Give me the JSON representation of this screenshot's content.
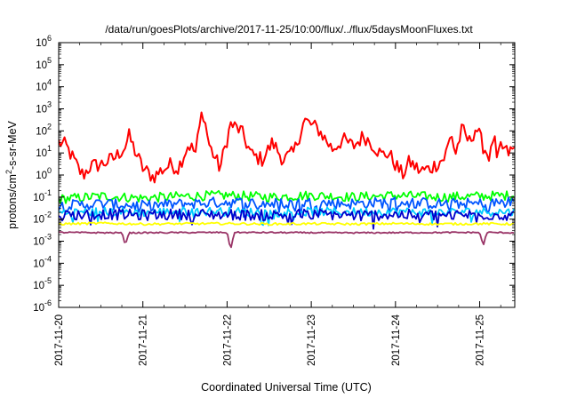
{
  "chart_data": {
    "type": "line",
    "title": "/data/run/goesPlots/archive/2017-11-25/10:00/flux/../flux/5daysMoonFluxes.txt",
    "xlabel": "Coordinated Universal Time (UTC)",
    "ylabel": {
      "prefix": "protons/cm",
      "sup": "2",
      "suffix": "-s-sr-MeV"
    },
    "x_range": [
      "2017-11-20 00:00",
      "2017-11-25 10:00"
    ],
    "y_scale": "log",
    "ylim": [
      1e-06,
      1000000.0
    ],
    "grid": false,
    "legend": "none",
    "x_ticks": [
      "2017-11-20",
      "2017-11-21",
      "2017-11-22",
      "2017-11-23",
      "2017-11-24",
      "2017-11-25"
    ],
    "y_ticks": [
      {
        "base": "10",
        "exp": "-6"
      },
      {
        "base": "10",
        "exp": "-5"
      },
      {
        "base": "10",
        "exp": "-4"
      },
      {
        "base": "10",
        "exp": "-3"
      },
      {
        "base": "10",
        "exp": "-2"
      },
      {
        "base": "10",
        "exp": "-1"
      },
      {
        "base": "10",
        "exp": "0"
      },
      {
        "base": "10",
        "exp": "1"
      },
      {
        "base": "10",
        "exp": "2"
      },
      {
        "base": "10",
        "exp": "3"
      },
      {
        "base": "10",
        "exp": "4"
      },
      {
        "base": "10",
        "exp": "5"
      },
      {
        "base": "10",
        "exp": "6"
      }
    ],
    "series": [
      {
        "color": "#ff0000",
        "values": [
          [
            "2017-11-20 00:00",
            30
          ],
          [
            "2017-11-20 02:00",
            22
          ],
          [
            "2017-11-20 04:00",
            6
          ],
          [
            "2017-11-20 06:00",
            1.5
          ],
          [
            "2017-11-20 07:00",
            1
          ],
          [
            "2017-11-20 09:00",
            2.5
          ],
          [
            "2017-11-20 12:00",
            3
          ],
          [
            "2017-11-20 16:00",
            6
          ],
          [
            "2017-11-20 19:00",
            20
          ],
          [
            "2017-11-20 20:00",
            60
          ],
          [
            "2017-11-20 22:00",
            10
          ],
          [
            "2017-11-21 00:00",
            2
          ],
          [
            "2017-11-21 03:00",
            0.8
          ],
          [
            "2017-11-21 05:00",
            1.5
          ],
          [
            "2017-11-21 08:00",
            3
          ],
          [
            "2017-11-21 10:00",
            2
          ],
          [
            "2017-11-21 13:00",
            25
          ],
          [
            "2017-11-21 15:00",
            10
          ],
          [
            "2017-11-21 17:00",
            1000
          ],
          [
            "2017-11-21 19:00",
            20
          ],
          [
            "2017-11-21 22:00",
            2
          ],
          [
            "2017-11-22 01:00",
            200
          ],
          [
            "2017-11-22 04:00",
            100
          ],
          [
            "2017-11-22 07:00",
            8
          ],
          [
            "2017-11-22 10:00",
            5
          ],
          [
            "2017-11-22 13:00",
            30
          ],
          [
            "2017-11-22 16:00",
            5
          ],
          [
            "2017-11-22 19:00",
            10
          ],
          [
            "2017-11-22 22:00",
            300
          ],
          [
            "2017-11-23 02:00",
            120
          ],
          [
            "2017-11-23 06:00",
            15
          ],
          [
            "2017-11-23 09:00",
            40
          ],
          [
            "2017-11-23 12:00",
            20
          ],
          [
            "2017-11-23 15:00",
            60
          ],
          [
            "2017-11-23 18:00",
            20
          ],
          [
            "2017-11-23 20:00",
            8
          ],
          [
            "2017-11-23 22:00",
            10
          ],
          [
            "2017-11-24 00:00",
            3
          ],
          [
            "2017-11-24 02:00",
            1
          ],
          [
            "2017-11-24 04:00",
            4
          ],
          [
            "2017-11-24 07:00",
            1.5
          ],
          [
            "2017-11-24 10:00",
            2
          ],
          [
            "2017-11-24 14:00",
            6
          ],
          [
            "2017-11-24 16:00",
            80
          ],
          [
            "2017-11-24 17:00",
            8
          ],
          [
            "2017-11-24 19:00",
            120
          ],
          [
            "2017-11-24 21:00",
            30
          ],
          [
            "2017-11-24 23:00",
            150
          ],
          [
            "2017-11-25 01:00",
            20
          ],
          [
            "2017-11-25 03:00",
            6
          ],
          [
            "2017-11-25 04:00",
            80
          ],
          [
            "2017-11-25 05:00",
            3
          ],
          [
            "2017-11-25 06:00",
            20
          ],
          [
            "2017-11-25 08:00",
            10
          ],
          [
            "2017-11-25 10:00",
            15
          ]
        ]
      },
      {
        "color": "#00ff00",
        "values": [
          [
            "2017-11-20 00:00",
            0.08
          ],
          [
            "2017-11-20 12:00",
            0.11
          ],
          [
            "2017-11-21 00:00",
            0.09
          ],
          [
            "2017-11-21 12:00",
            0.11
          ],
          [
            "2017-11-22 00:00",
            0.12
          ],
          [
            "2017-11-22 12:00",
            0.1
          ],
          [
            "2017-11-23 00:00",
            0.12
          ],
          [
            "2017-11-23 12:00",
            0.1
          ],
          [
            "2017-11-24 00:00",
            0.12
          ],
          [
            "2017-11-24 12:00",
            0.1
          ],
          [
            "2017-11-25 00:00",
            0.11
          ],
          [
            "2017-11-25 10:00",
            0.12
          ]
        ]
      },
      {
        "color": "#0055ff",
        "values": [
          [
            "2017-11-20 00:00",
            0.04
          ],
          [
            "2017-11-20 12:00",
            0.05
          ],
          [
            "2017-11-21 00:00",
            0.04
          ],
          [
            "2017-11-21 12:00",
            0.05
          ],
          [
            "2017-11-22 00:00",
            0.06
          ],
          [
            "2017-11-22 12:00",
            0.05
          ],
          [
            "2017-11-23 00:00",
            0.055
          ],
          [
            "2017-11-23 12:00",
            0.05
          ],
          [
            "2017-11-24 00:00",
            0.06
          ],
          [
            "2017-11-24 12:00",
            0.05
          ],
          [
            "2017-11-25 00:00",
            0.05
          ],
          [
            "2017-11-25 10:00",
            0.06
          ]
        ]
      },
      {
        "color": "#00ccff",
        "values": [
          [
            "2017-11-20 00:00",
            0.02
          ],
          [
            "2017-11-20 12:00",
            0.022
          ],
          [
            "2017-11-21 00:00",
            0.02
          ],
          [
            "2017-11-21 12:00",
            0.023
          ],
          [
            "2017-11-22 00:00",
            0.022
          ],
          [
            "2017-11-22 12:00",
            0.02
          ],
          [
            "2017-11-23 00:00",
            0.022
          ],
          [
            "2017-11-23 12:00",
            0.021
          ],
          [
            "2017-11-24 00:00",
            0.022
          ],
          [
            "2017-11-24 12:00",
            0.02
          ],
          [
            "2017-11-25 00:00",
            0.022
          ],
          [
            "2017-11-25 10:00",
            0.021
          ]
        ]
      },
      {
        "color": "#0000cc",
        "values": [
          [
            "2017-11-20 00:00",
            0.015
          ],
          [
            "2017-11-20 12:00",
            0.017
          ],
          [
            "2017-11-21 00:00",
            0.015
          ],
          [
            "2017-11-21 12:00",
            0.017
          ],
          [
            "2017-11-22 00:00",
            0.016
          ],
          [
            "2017-11-22 12:00",
            0.015
          ],
          [
            "2017-11-23 00:00",
            0.017
          ],
          [
            "2017-11-23 12:00",
            0.015
          ],
          [
            "2017-11-24 00:00",
            0.016
          ],
          [
            "2017-11-24 12:00",
            0.015
          ],
          [
            "2017-11-25 00:00",
            0.016
          ],
          [
            "2017-11-25 10:00",
            0.015
          ]
        ]
      },
      {
        "color": "#ffff00",
        "values": [
          [
            "2017-11-20 00:00",
            0.006
          ],
          [
            "2017-11-20 12:00",
            0.0065
          ],
          [
            "2017-11-21 00:00",
            0.006
          ],
          [
            "2017-11-21 12:00",
            0.0062
          ],
          [
            "2017-11-22 00:00",
            0.0063
          ],
          [
            "2017-11-22 12:00",
            0.006
          ],
          [
            "2017-11-23 00:00",
            0.0062
          ],
          [
            "2017-11-23 12:00",
            0.006
          ],
          [
            "2017-11-24 00:00",
            0.0063
          ],
          [
            "2017-11-24 12:00",
            0.006
          ],
          [
            "2017-11-25 00:00",
            0.0062
          ],
          [
            "2017-11-25 10:00",
            0.006
          ]
        ]
      },
      {
        "color": "#993366",
        "values": [
          [
            "2017-11-20 00:00",
            0.0025
          ],
          [
            "2017-11-20 18:00",
            0.0024
          ],
          [
            "2017-11-20 19:00",
            0.0007
          ],
          [
            "2017-11-20 20:00",
            0.0024
          ],
          [
            "2017-11-22 00:00",
            0.0025
          ],
          [
            "2017-11-22 01:00",
            0.0004
          ],
          [
            "2017-11-22 02:00",
            0.0025
          ],
          [
            "2017-11-23 12:00",
            0.0024
          ],
          [
            "2017-11-25 00:00",
            0.0025
          ],
          [
            "2017-11-25 01:00",
            0.0006
          ],
          [
            "2017-11-25 02:00",
            0.0025
          ],
          [
            "2017-11-25 10:00",
            0.0024
          ]
        ]
      }
    ]
  }
}
